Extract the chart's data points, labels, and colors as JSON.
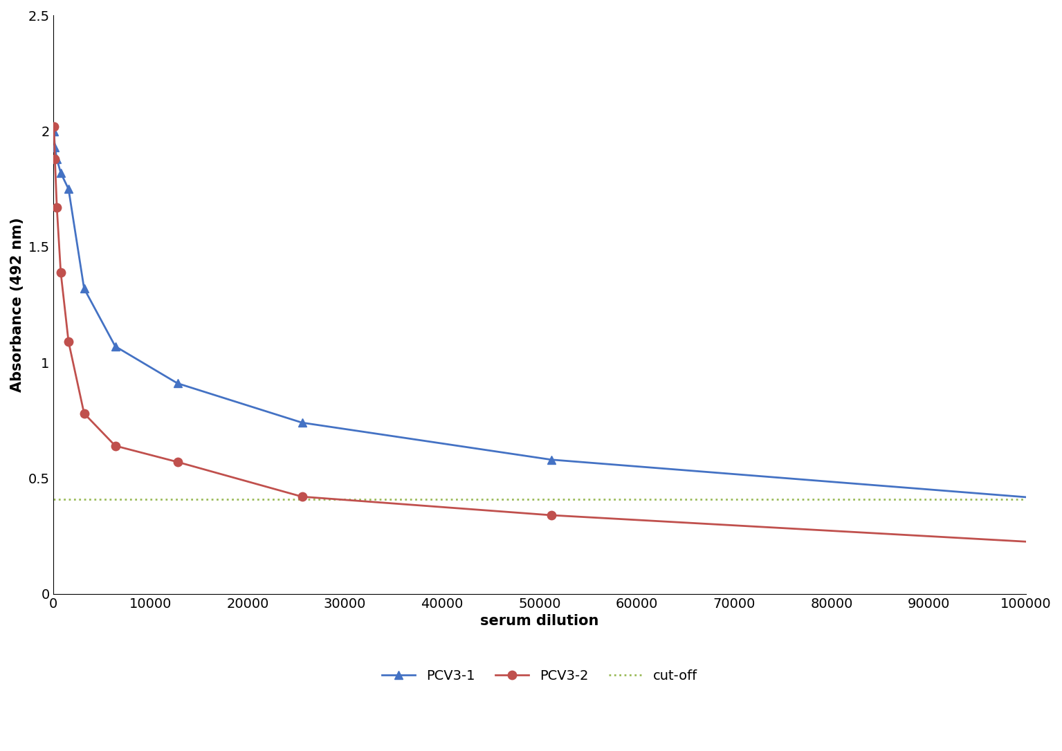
{
  "pcv3_1_x": [
    100,
    200,
    400,
    800,
    1600,
    3200,
    6400,
    12800,
    25600,
    51200,
    102400
  ],
  "pcv3_1_y": [
    2.0,
    1.93,
    1.88,
    1.82,
    1.75,
    1.32,
    1.07,
    0.91,
    0.74,
    0.58,
    0.41
  ],
  "pcv3_2_x": [
    100,
    200,
    400,
    800,
    1600,
    3200,
    6400,
    12800,
    25600,
    51200,
    102400
  ],
  "pcv3_2_y": [
    2.02,
    1.88,
    1.67,
    1.39,
    1.09,
    0.78,
    0.64,
    0.57,
    0.42,
    0.34,
    0.22
  ],
  "cutoff": 0.41,
  "pcv3_1_color": "#4472C4",
  "pcv3_2_color": "#C0504D",
  "cutoff_color": "#9BBB59",
  "xlabel": "serum dilution",
  "ylabel": "Absorbance (492 nm)",
  "ylim": [
    0,
    2.5
  ],
  "xlim": [
    0,
    100000
  ],
  "xticks": [
    0,
    10000,
    20000,
    30000,
    40000,
    50000,
    60000,
    70000,
    80000,
    90000,
    100000
  ],
  "yticks": [
    0,
    0.5,
    1.0,
    1.5,
    2.0,
    2.5
  ],
  "legend_labels": [
    "PCV3-1",
    "PCV3-2",
    "cut-off"
  ],
  "xlabel_fontsize": 15,
  "ylabel_fontsize": 15,
  "tick_fontsize": 14,
  "legend_fontsize": 14,
  "marker_size": 9,
  "line_width": 2.0
}
